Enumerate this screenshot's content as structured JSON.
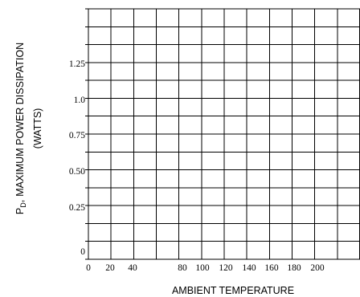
{
  "chart_data": {
    "type": "line",
    "series": [],
    "grid": true,
    "legend": "none",
    "xlabel": "AMBIENT TEMPERATURE",
    "ylabel_line1": "MAXIMUM POWER DISSIPATION",
    "ylabel_symbol": "P",
    "ylabel_subscript": "D",
    "ylabel_separator": ",",
    "ylabel_line2": "(WATTS)",
    "x_tick_labels": [
      "0",
      "20",
      "40",
      "80",
      "100",
      "120",
      "140",
      "160",
      "180",
      "200"
    ],
    "y_tick_labels": [
      "0",
      "0.25",
      "0.50",
      "0.75",
      "1.0",
      "1.25"
    ],
    "xlim": [
      0,
      240
    ],
    "ylim": [
      0,
      1.75
    ]
  }
}
